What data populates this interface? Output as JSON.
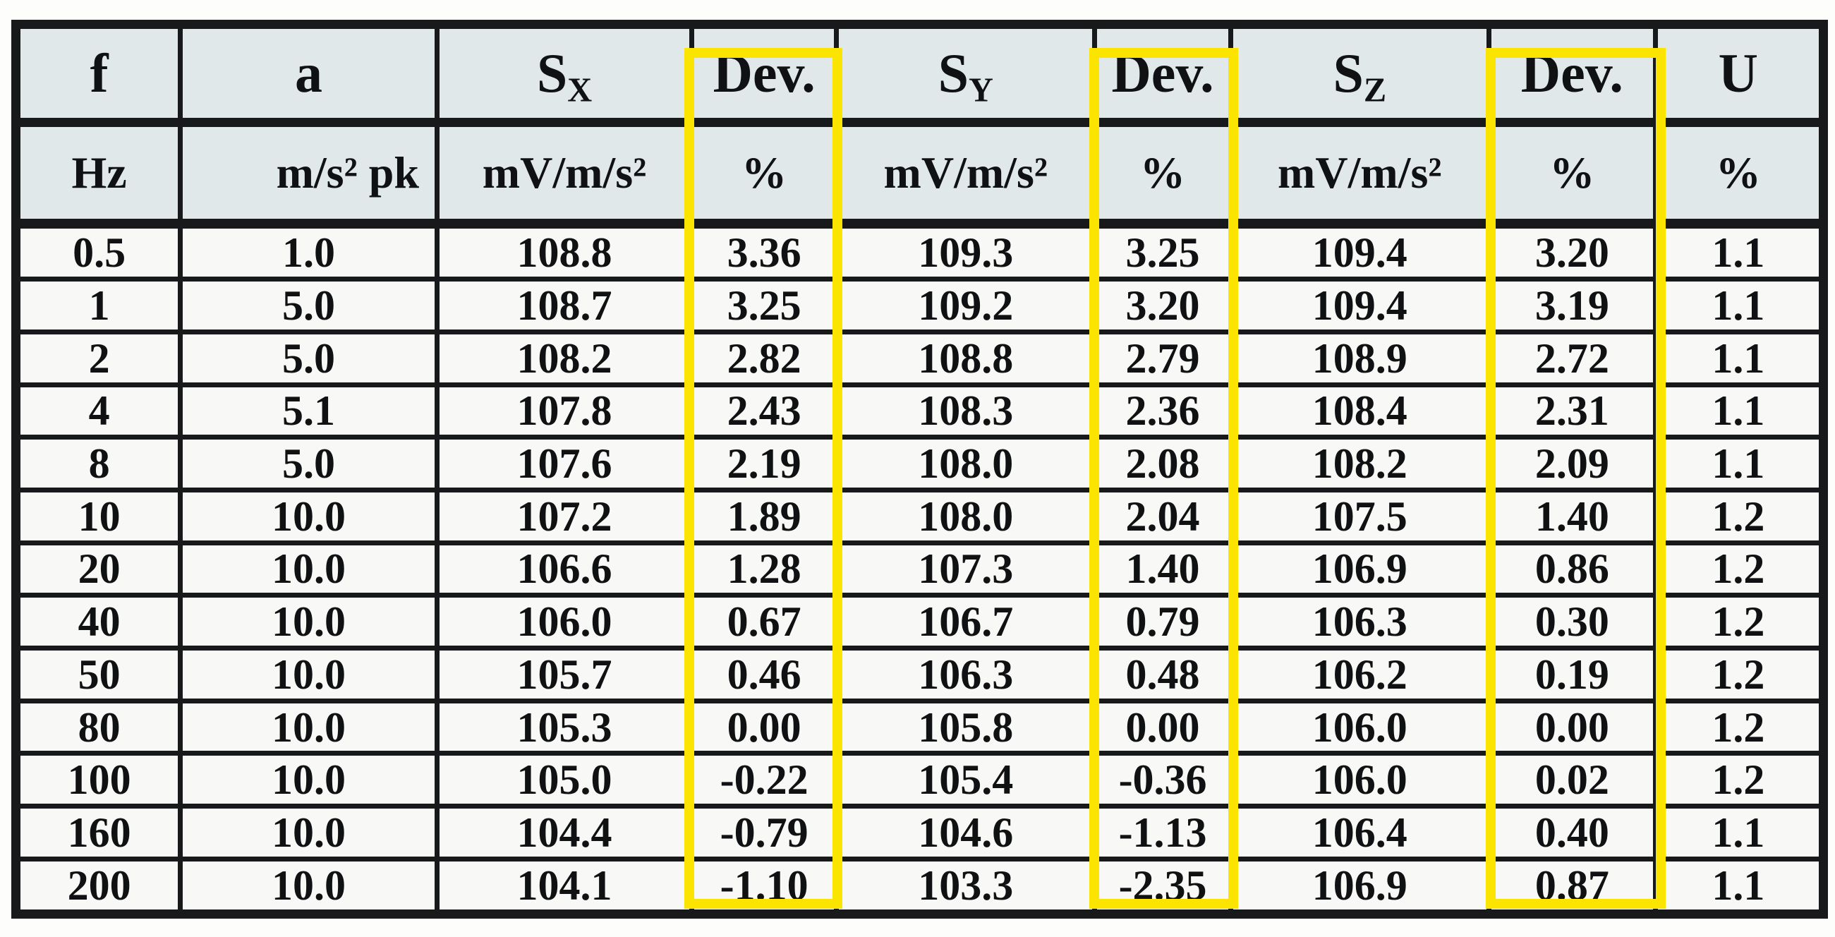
{
  "style": {
    "header_bg": "#e0e8ea",
    "body_bg": "#f8f8f6",
    "border_color": "#17191a",
    "highlight_color": "#fbe400"
  },
  "table": {
    "columns": [
      {
        "id": "f",
        "label": "f",
        "unit": "Hz"
      },
      {
        "id": "a",
        "label": "a",
        "unit": "m/s² pk"
      },
      {
        "id": "sx",
        "label": "S",
        "sub": "X",
        "unit": "mV/m/s²"
      },
      {
        "id": "dev-x",
        "label": "Dev.",
        "unit": "%",
        "highlighted": true
      },
      {
        "id": "sy",
        "label": "S",
        "sub": "Y",
        "unit": "mV/m/s²"
      },
      {
        "id": "dev-y",
        "label": "Dev.",
        "unit": "%",
        "highlighted": true
      },
      {
        "id": "sz",
        "label": "S",
        "sub": "Z",
        "unit": "mV/m/s²"
      },
      {
        "id": "dev-z",
        "label": "Dev.",
        "unit": "%",
        "highlighted": true
      },
      {
        "id": "u",
        "label": "U",
        "unit": "%"
      }
    ],
    "rows": [
      [
        "0.5",
        "1.0",
        "108.8",
        "3.36",
        "109.3",
        "3.25",
        "109.4",
        "3.20",
        "1.1"
      ],
      [
        "1",
        "5.0",
        "108.7",
        "3.25",
        "109.2",
        "3.20",
        "109.4",
        "3.19",
        "1.1"
      ],
      [
        "2",
        "5.0",
        "108.2",
        "2.82",
        "108.8",
        "2.79",
        "108.9",
        "2.72",
        "1.1"
      ],
      [
        "4",
        "5.1",
        "107.8",
        "2.43",
        "108.3",
        "2.36",
        "108.4",
        "2.31",
        "1.1"
      ],
      [
        "8",
        "5.0",
        "107.6",
        "2.19",
        "108.0",
        "2.08",
        "108.2",
        "2.09",
        "1.1"
      ],
      [
        "10",
        "10.0",
        "107.2",
        "1.89",
        "108.0",
        "2.04",
        "107.5",
        "1.40",
        "1.2"
      ],
      [
        "20",
        "10.0",
        "106.6",
        "1.28",
        "107.3",
        "1.40",
        "106.9",
        "0.86",
        "1.2"
      ],
      [
        "40",
        "10.0",
        "106.0",
        "0.67",
        "106.7",
        "0.79",
        "106.3",
        "0.30",
        "1.2"
      ],
      [
        "50",
        "10.0",
        "105.7",
        "0.46",
        "106.3",
        "0.48",
        "106.2",
        "0.19",
        "1.2"
      ],
      [
        "80",
        "10.0",
        "105.3",
        "0.00",
        "105.8",
        "0.00",
        "106.0",
        "0.00",
        "1.2"
      ],
      [
        "100",
        "10.0",
        "105.0",
        "-0.22",
        "105.4",
        "-0.36",
        "106.0",
        "0.02",
        "1.2"
      ],
      [
        "160",
        "10.0",
        "104.4",
        "-0.79",
        "104.6",
        "-1.13",
        "106.4",
        "0.40",
        "1.1"
      ],
      [
        "200",
        "10.0",
        "104.1",
        "-1.10",
        "103.3",
        "-2.35",
        "106.9",
        "0.87",
        "1.1"
      ]
    ]
  }
}
